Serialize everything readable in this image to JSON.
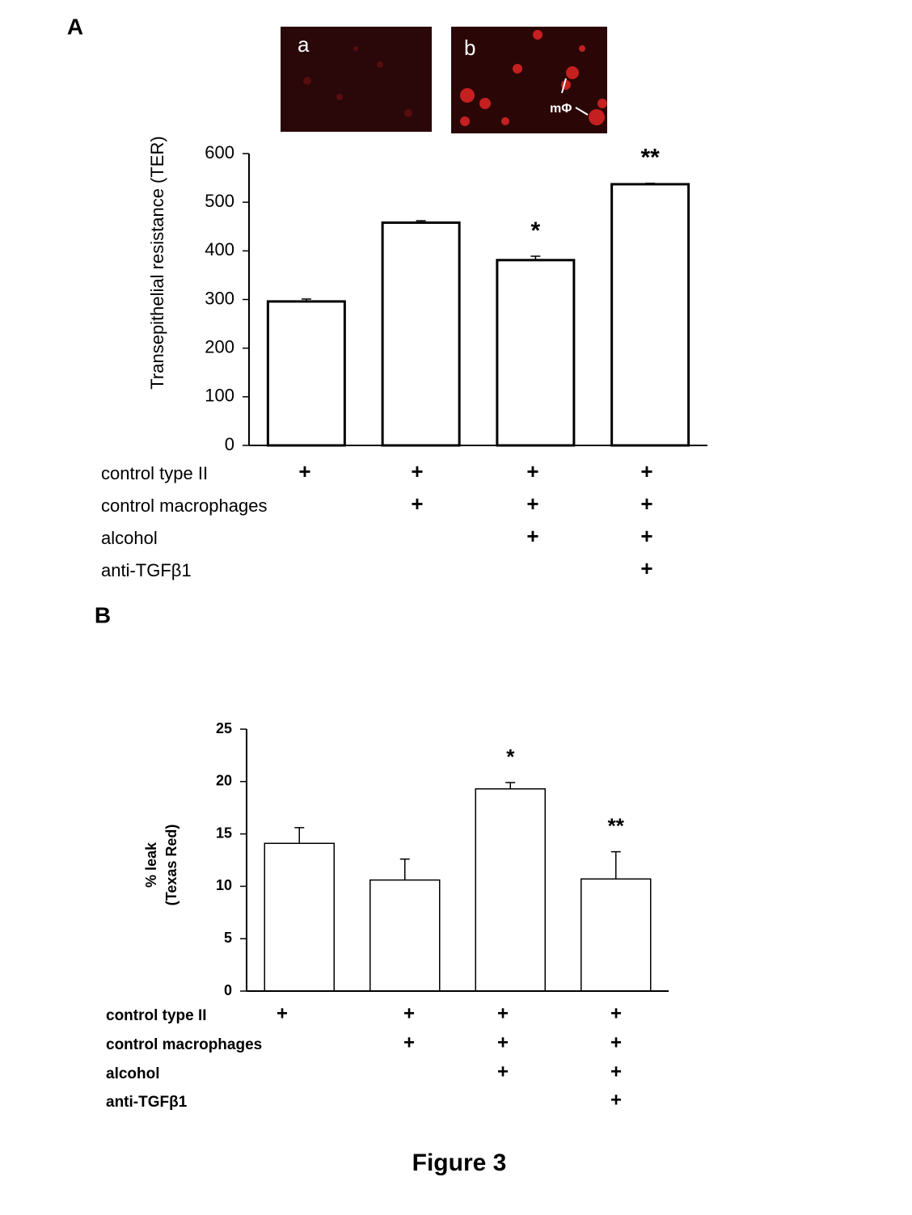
{
  "caption": "Figure 3",
  "chart_data": [
    {
      "type": "bar",
      "panel_label": "A",
      "images": [
        {
          "label": "a"
        },
        {
          "label": "b",
          "annotation": "mΦ"
        }
      ],
      "ylabel": [
        "Transepithelial resistance (TER)"
      ],
      "categories": [
        null,
        null,
        null,
        null
      ],
      "values": [
        296,
        458,
        381,
        537
      ],
      "errors": [
        5,
        4,
        8,
        2
      ],
      "annotations": [
        null,
        null,
        "*",
        "**"
      ],
      "color": "#ffffff",
      "ylim": [
        0,
        600
      ],
      "yticks": [
        0,
        100,
        200,
        300,
        400,
        500,
        600
      ],
      "conditions": [
        {
          "label": "control type II",
          "marks": [
            "+",
            "+",
            "+",
            "+"
          ]
        },
        {
          "label": "control macrophages",
          "marks": [
            null,
            "+",
            "+",
            "+"
          ]
        },
        {
          "label": "alcohol",
          "marks": [
            null,
            null,
            "+",
            "+"
          ]
        },
        {
          "label": "anti-TGFβ1",
          "marks": [
            null,
            null,
            null,
            "+"
          ]
        }
      ]
    },
    {
      "type": "bar",
      "panel_label": "B",
      "ylabel": [
        "% leak",
        "(Texas Red)"
      ],
      "categories": [
        null,
        null,
        null,
        null
      ],
      "values": [
        14.1,
        10.6,
        19.3,
        10.7
      ],
      "errors": [
        1.5,
        2.0,
        0.6,
        2.6
      ],
      "annotations": [
        null,
        null,
        "*",
        "**"
      ],
      "color": "#ffffff",
      "ylim": [
        0,
        25
      ],
      "yticks": [
        0,
        5,
        10,
        15,
        20,
        25
      ],
      "conditions": [
        {
          "label": "control type II",
          "marks": [
            "+",
            "+",
            "+",
            "+"
          ]
        },
        {
          "label": "control macrophages",
          "marks": [
            null,
            "+",
            "+",
            "+"
          ]
        },
        {
          "label": "alcohol",
          "marks": [
            null,
            null,
            "+",
            "+"
          ]
        },
        {
          "label": "anti-TGFβ1",
          "marks": [
            null,
            null,
            null,
            "+"
          ]
        }
      ]
    }
  ]
}
